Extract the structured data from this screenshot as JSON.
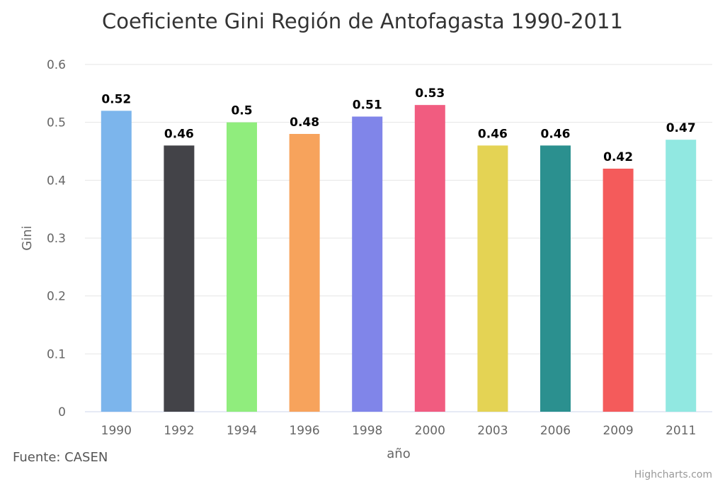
{
  "chart_data": {
    "type": "bar",
    "title": "Coeficiente Gini Región de Antofagasta 1990-2011",
    "xlabel": "año",
    "ylabel": "Gini",
    "categories": [
      "1990",
      "1992",
      "1994",
      "1996",
      "1998",
      "2000",
      "2003",
      "2006",
      "2009",
      "2011"
    ],
    "values": [
      0.52,
      0.46,
      0.5,
      0.48,
      0.51,
      0.53,
      0.46,
      0.46,
      0.42,
      0.47
    ],
    "data_labels": [
      "0.52",
      "0.46",
      "0.5",
      "0.48",
      "0.51",
      "0.53",
      "0.46",
      "0.46",
      "0.42",
      "0.47"
    ],
    "colors": [
      "#7cb5ec",
      "#434348",
      "#90ed7d",
      "#f7a35c",
      "#8085e9",
      "#f15c80",
      "#e4d354",
      "#2b908f",
      "#f45b5b",
      "#91e8e1"
    ],
    "ylim": [
      0,
      0.6
    ],
    "yticks": [
      "0",
      "0.1",
      "0.2",
      "0.3",
      "0.4",
      "0.5",
      "0.6"
    ],
    "grid": true,
    "legend": "none"
  },
  "source_text": "Fuente: CASEN",
  "credits_text": "Highcharts.com"
}
